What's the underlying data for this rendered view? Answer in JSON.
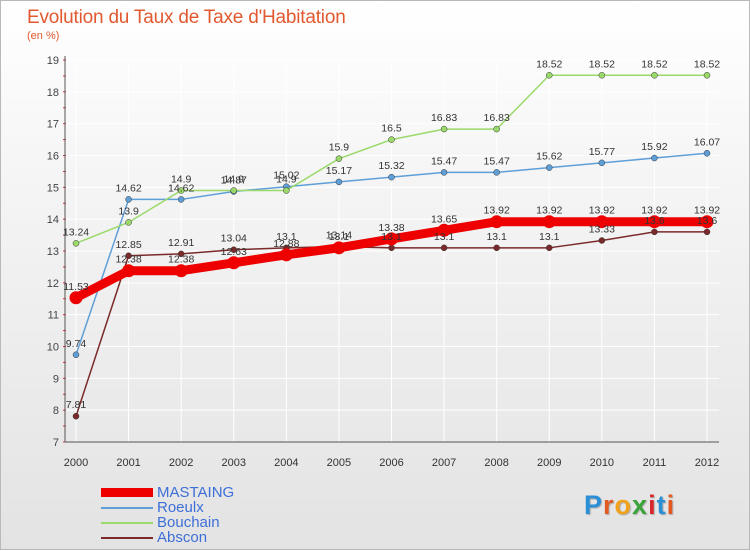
{
  "title": "Evolution du Taux de Taxe d'Habitation",
  "subtitle": "(en %)",
  "logo": {
    "letters": [
      "P",
      "r",
      "o",
      "x",
      "i",
      "t",
      "i"
    ],
    "colors": [
      "#2b8fd6",
      "#e25a23",
      "#f0a21a",
      "#3aa33a",
      "#d8262c",
      "#2b8fd6",
      "#e25a23"
    ]
  },
  "chart_data": {
    "type": "line",
    "x": [
      "2000",
      "2001",
      "2002",
      "2003",
      "2004",
      "2005",
      "2006",
      "2007",
      "2008",
      "2009",
      "2010",
      "2011",
      "2012"
    ],
    "ylim": [
      7,
      19
    ],
    "yticks": [
      "7",
      "8",
      "9",
      "10",
      "11",
      "12",
      "13",
      "14",
      "15",
      "16",
      "17",
      "18",
      "19"
    ],
    "grid": true,
    "legend_position": "bottom-left",
    "series": [
      {
        "name": "MASTAING",
        "color": "#ee0000",
        "width": 9,
        "values": [
          11.53,
          12.38,
          12.38,
          12.63,
          12.88,
          13.1,
          13.38,
          13.65,
          13.92,
          13.92,
          13.92,
          13.92,
          13.92
        ],
        "labels": [
          "11.53",
          "12.38",
          "12.38",
          "12.63",
          "12.88",
          "13.1",
          "13.38",
          "13.65",
          "13.92",
          "13.92",
          "13.92",
          "13.92",
          "13.92"
        ]
      },
      {
        "name": "Roeulx",
        "color": "#5f9fd8",
        "width": 1.5,
        "values": [
          9.74,
          14.62,
          14.62,
          14.87,
          15.02,
          15.17,
          15.32,
          15.47,
          15.47,
          15.62,
          15.77,
          15.92,
          16.07
        ],
        "labels": [
          "9.74",
          "14.62",
          "14.62",
          "14.87",
          "15.02",
          "15.17",
          "15.32",
          "15.47",
          "15.47",
          "15.62",
          "15.77",
          "15.92",
          "16.07"
        ]
      },
      {
        "name": "Bouchain",
        "color": "#9ad96a",
        "width": 1.5,
        "values": [
          13.24,
          13.9,
          14.9,
          14.9,
          14.9,
          15.9,
          16.5,
          16.83,
          16.83,
          18.52,
          18.52,
          18.52,
          18.52
        ],
        "labels": [
          "13.24",
          "13.9",
          "14.9",
          "14.9",
          "14.9",
          "15.9",
          "16.5",
          "16.83",
          "16.83",
          "18.52",
          "18.52",
          "18.52",
          "18.52"
        ]
      },
      {
        "name": "Abscon",
        "color": "#7a2a2a",
        "width": 1.5,
        "values": [
          7.81,
          12.85,
          12.91,
          13.04,
          13.1,
          13.14,
          13.1,
          13.1,
          13.1,
          13.1,
          13.33,
          13.6,
          13.6
        ],
        "labels": [
          "7.81",
          "12.85",
          "12.91",
          "13.04",
          "13.1",
          "13.14",
          "13.1",
          "13.1",
          "13.1",
          "13.1",
          "13.33",
          "13.6",
          "13.6"
        ]
      }
    ]
  }
}
